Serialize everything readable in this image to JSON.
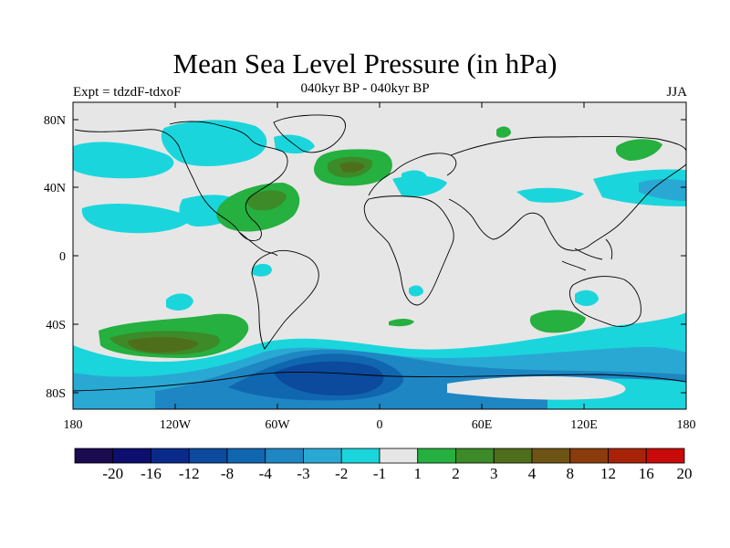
{
  "title": "Mean Sea Level Pressure (in hPa)",
  "subtitle_left": "Expt = tdzdF-tdxoF",
  "subtitle_center": "040kyr BP - 040kyr BP",
  "subtitle_right": "JJA",
  "lat_ticks": [
    "80N",
    "40N",
    "0",
    "40S",
    "80S"
  ],
  "lon_ticks": [
    "180",
    "120W",
    "60W",
    "0",
    "60E",
    "120E",
    "180"
  ],
  "colorbar": {
    "labels": [
      "-20",
      "-16",
      "-12",
      "-8",
      "-4",
      "-3",
      "-2",
      "-1",
      "1",
      "2",
      "3",
      "4",
      "8",
      "12",
      "16",
      "20"
    ],
    "colors": [
      "#1a0a4f",
      "#0c0f6e",
      "#0a2a8a",
      "#0b4a9c",
      "#1166b0",
      "#1e86c2",
      "#2aa8d4",
      "#1ad6dc",
      "#e6e6e6",
      "#25b040",
      "#3c8a28",
      "#4f6e1c",
      "#6e5414",
      "#8a3c0c",
      "#a82208",
      "#c80a0a"
    ]
  },
  "colors": {
    "background_field": "#e6e6e6",
    "coast": "#000000"
  }
}
